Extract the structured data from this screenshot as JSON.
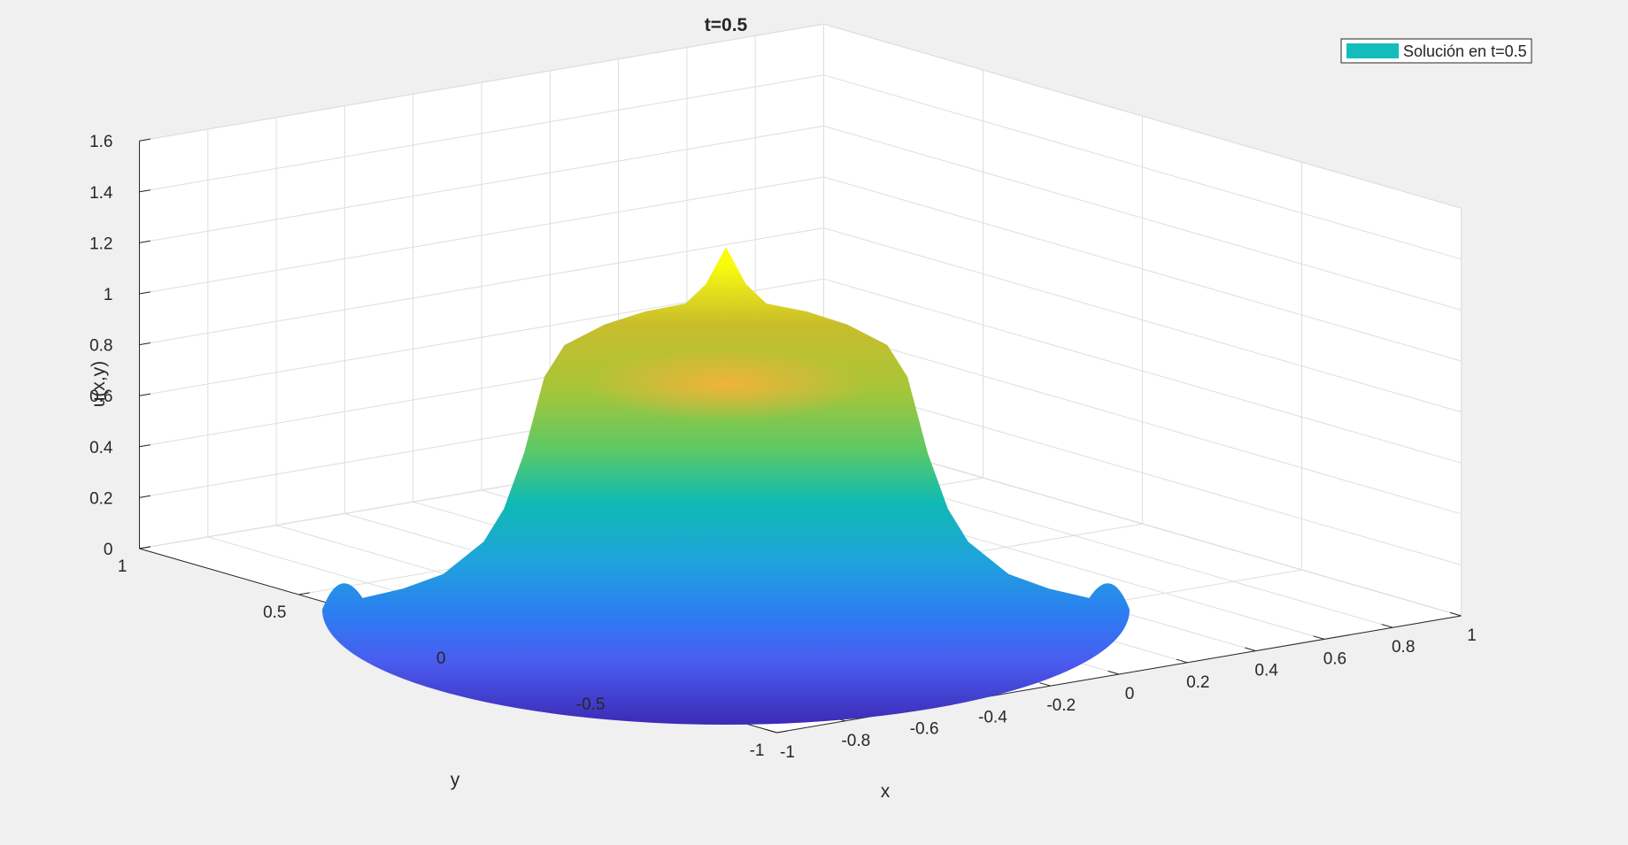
{
  "chart_data": {
    "type": "surface3d",
    "title": "t=0.5",
    "xlabel": "x",
    "ylabel": "y",
    "zlabel": "u(x,y)",
    "xlim": [
      -1,
      1
    ],
    "ylim": [
      -1,
      1
    ],
    "zlim": [
      0,
      1.6
    ],
    "x_ticks": [
      "-1",
      "-0.8",
      "-0.6",
      "-0.4",
      "-0.2",
      "0",
      "0.2",
      "0.4",
      "0.6",
      "0.8",
      "1"
    ],
    "y_ticks": [
      "-1",
      "-0.5",
      "0",
      "0.5",
      "1"
    ],
    "z_ticks": [
      "0",
      "0.2",
      "0.4",
      "0.6",
      "0.8",
      "1",
      "1.2",
      "1.4",
      "1.6"
    ],
    "grid": true,
    "colormap": "parula",
    "domain": "unit disk",
    "surface_profile": {
      "r": [
        0,
        0.05,
        0.1,
        0.2,
        0.3,
        0.4,
        0.45,
        0.5,
        0.55,
        0.6,
        0.7,
        0.8,
        0.9,
        1.0
      ],
      "u": [
        1.45,
        1.3,
        1.22,
        1.18,
        1.12,
        1.03,
        0.9,
        0.6,
        0.38,
        0.25,
        0.12,
        0.06,
        0.02,
        0.0
      ]
    },
    "legend": {
      "position": "top-right",
      "entries": [
        {
          "label": "Solución en t=0.5",
          "color": "#14bcbc"
        }
      ]
    }
  }
}
